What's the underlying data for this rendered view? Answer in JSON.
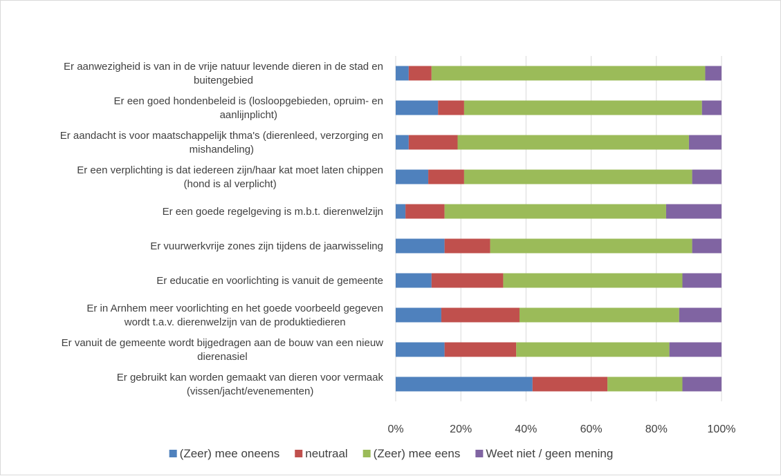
{
  "chart_data": {
    "type": "bar",
    "orientation": "horizontal",
    "stacked": "percent",
    "title": "",
    "categories": [
      [
        "Er aanwezigheid is van in de vrije natuur levende dieren in de stad en",
        "buitengebied"
      ],
      [
        "Er een goed hondenbeleid is (losloopgebieden, opruim- en",
        "aanlijnplicht)"
      ],
      [
        "Er aandacht is voor maatschappelijk thma's (dierenleed, verzorging en",
        "mishandeling)"
      ],
      [
        "Er een verplichting is dat iedereen zijn/haar kat moet laten chippen",
        "(hond is al verplicht)"
      ],
      [
        "Er een goede regelgeving is m.b.t. dierenwelzijn"
      ],
      [
        "Er vuurwerkvrije zones zijn tijdens de jaarwisseling"
      ],
      [
        "Er educatie en voorlichting is vanuit de gemeente"
      ],
      [
        "Er in Arnhem meer voorlichting en het goede voorbeeld gegeven",
        "wordt t.a.v. dierenwelzijn van de produktiedieren"
      ],
      [
        "Er vanuit de gemeente wordt bijgedragen aan de bouw van een nieuw",
        "dierenasiel"
      ],
      [
        "Er gebruikt kan worden gemaakt van dieren voor vermaak",
        "(vissen/jacht/evenementen)"
      ]
    ],
    "series": [
      {
        "name": "(Zeer) mee oneens",
        "color": "#4f81bd",
        "values": [
          4,
          13,
          4,
          10,
          3,
          15,
          11,
          14,
          15,
          42
        ]
      },
      {
        "name": "neutraal",
        "color": "#c0504d",
        "values": [
          7,
          8,
          15,
          11,
          12,
          14,
          22,
          24,
          22,
          23
        ]
      },
      {
        "name": "(Zeer) mee eens",
        "color": "#9bbb59",
        "values": [
          84,
          73,
          71,
          70,
          68,
          62,
          55,
          49,
          47,
          23
        ]
      },
      {
        "name": "Weet niet / geen mening",
        "color": "#8064a2",
        "values": [
          5,
          6,
          10,
          9,
          17,
          9,
          12,
          13,
          16,
          12
        ]
      }
    ],
    "xlim": [
      0,
      100
    ],
    "xticks": [
      "0%",
      "20%",
      "40%",
      "60%",
      "80%",
      "100%"
    ],
    "grid": "vertical",
    "legend_position": "bottom"
  }
}
